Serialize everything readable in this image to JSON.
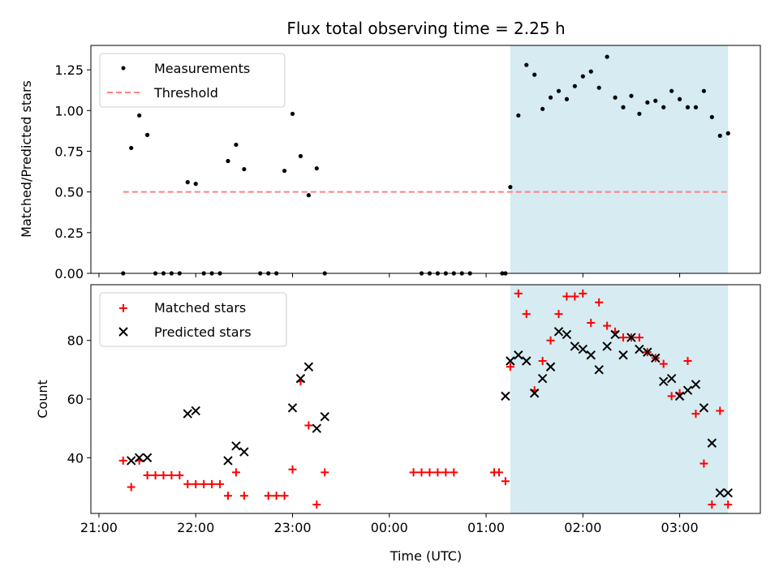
{
  "chart_data": [
    {
      "type": "scatter",
      "title": "Flux total observing time = 2.25 h",
      "xlabel": "",
      "ylabel": "Matched/Predicted stars",
      "xlim": [
        "20:55",
        "03:50"
      ],
      "ylim": [
        0,
        1.4
      ],
      "yticks": [
        "0.00",
        "0.25",
        "0.50",
        "0.75",
        "1.00",
        "1.25"
      ],
      "legend": {
        "placement": "upper-left",
        "entries": [
          "Measurements",
          "Threshold"
        ]
      },
      "highlight": {
        "from": "01:15",
        "to": "03:30",
        "color": "#add8e6"
      },
      "threshold": {
        "name": "Threshold",
        "value": 0.5,
        "from": "21:15",
        "to": "03:30",
        "color": "#ff8080"
      },
      "series": [
        {
          "name": "Measurements",
          "color": "#000000",
          "x": [
            "21:15",
            "21:20",
            "21:25",
            "21:30",
            "21:35",
            "21:40",
            "21:45",
            "21:50",
            "21:55",
            "22:00",
            "22:05",
            "22:10",
            "22:15",
            "22:20",
            "22:25",
            "22:30",
            "22:40",
            "22:45",
            "22:50",
            "22:55",
            "23:00",
            "23:05",
            "23:10",
            "23:15",
            "23:20",
            "00:20",
            "00:25",
            "00:30",
            "00:35",
            "00:40",
            "00:45",
            "00:50",
            "01:10",
            "01:12",
            "01:15",
            "01:20",
            "01:25",
            "01:30",
            "01:35",
            "01:40",
            "01:45",
            "01:50",
            "01:55",
            "02:00",
            "02:05",
            "02:10",
            "02:15",
            "02:20",
            "02:25",
            "02:30",
            "02:35",
            "02:40",
            "02:45",
            "02:50",
            "02:55",
            "03:00",
            "03:05",
            "03:10",
            "03:15",
            "03:20",
            "03:25",
            "03:30"
          ],
          "y": [
            0,
            0.77,
            0.97,
            0.85,
            0,
            0,
            0,
            0,
            0.56,
            0.55,
            0,
            0,
            0,
            0.69,
            0.79,
            0.64,
            0,
            0,
            0,
            0.63,
            0.98,
            0.72,
            0.48,
            0.645,
            0,
            0,
            0,
            0,
            0,
            0,
            0,
            0,
            0,
            0,
            0.53,
            0.97,
            1.28,
            1.22,
            1.01,
            1.08,
            1.12,
            1.07,
            1.15,
            1.21,
            1.24,
            1.14,
            1.33,
            1.08,
            1.02,
            1.09,
            0.98,
            1.05,
            1.06,
            1.02,
            1.12,
            1.07,
            1.02,
            1.02,
            1.12,
            0.96,
            0.845,
            0.86
          ]
        }
      ]
    },
    {
      "type": "scatter",
      "title": "",
      "xlabel": "Time (UTC)",
      "ylabel": "Count",
      "xlim": [
        "20:55",
        "03:50"
      ],
      "ylim": [
        21,
        99
      ],
      "yticks": [
        "40",
        "60",
        "80"
      ],
      "xticks": [
        "21:00",
        "22:00",
        "23:00",
        "00:00",
        "01:00",
        "02:00",
        "03:00"
      ],
      "legend": {
        "placement": "upper-left",
        "entries": [
          "Matched stars",
          "Predicted stars"
        ]
      },
      "highlight": {
        "from": "01:15",
        "to": "03:30",
        "color": "#add8e6"
      },
      "series": [
        {
          "name": "Matched stars",
          "marker": "plus",
          "color": "#ff0000",
          "x": [
            "21:15",
            "21:20",
            "21:25",
            "21:30",
            "21:35",
            "21:40",
            "21:45",
            "21:50",
            "21:55",
            "22:00",
            "22:05",
            "22:10",
            "22:15",
            "22:20",
            "22:25",
            "22:30",
            "22:45",
            "22:50",
            "22:55",
            "23:00",
            "23:05",
            "23:10",
            "23:15",
            "23:20",
            "00:15",
            "00:20",
            "00:25",
            "00:30",
            "00:35",
            "00:40",
            "01:05",
            "01:08",
            "01:12",
            "01:15",
            "01:20",
            "01:25",
            "01:30",
            "01:35",
            "01:40",
            "01:45",
            "01:50",
            "01:55",
            "02:00",
            "02:05",
            "02:10",
            "02:15",
            "02:20",
            "02:25",
            "02:30",
            "02:35",
            "02:40",
            "02:45",
            "02:50",
            "02:55",
            "03:00",
            "03:05",
            "03:10",
            "03:15",
            "03:20",
            "03:25",
            "03:30"
          ],
          "y": [
            39,
            30,
            39,
            34,
            34,
            34,
            34,
            34,
            31,
            31,
            31,
            31,
            31,
            27,
            35,
            27,
            27,
            27,
            27,
            36,
            66,
            51,
            24,
            35,
            35,
            35,
            35,
            35,
            35,
            35,
            35,
            35,
            32,
            71,
            96,
            89,
            63,
            73,
            80,
            89,
            95,
            95,
            96,
            86,
            93,
            85,
            83,
            81,
            81,
            81,
            76,
            74,
            72,
            61,
            62,
            73,
            55,
            38,
            24,
            56,
            24
          ]
        },
        {
          "name": "Predicted stars",
          "marker": "x",
          "color": "#000000",
          "x": [
            "21:20",
            "21:25",
            "21:30",
            "21:55",
            "22:00",
            "22:20",
            "22:25",
            "22:30",
            "23:00",
            "23:05",
            "23:10",
            "23:15",
            "23:20",
            "01:12",
            "01:15",
            "01:20",
            "01:25",
            "01:30",
            "01:35",
            "01:40",
            "01:45",
            "01:50",
            "01:55",
            "02:00",
            "02:05",
            "02:10",
            "02:15",
            "02:20",
            "02:25",
            "02:30",
            "02:35",
            "02:40",
            "02:45",
            "02:50",
            "02:55",
            "03:00",
            "03:05",
            "03:10",
            "03:15",
            "03:20",
            "03:25",
            "03:30"
          ],
          "y": [
            39,
            40,
            40,
            55,
            56,
            39,
            44,
            42,
            57,
            67,
            71,
            50,
            54,
            61,
            73,
            75,
            73,
            62,
            67,
            71,
            83,
            82,
            78,
            77,
            75,
            70,
            78,
            82,
            75,
            81,
            77,
            76,
            74,
            66,
            67,
            61,
            63,
            65,
            57,
            45,
            28,
            28
          ]
        }
      ]
    }
  ]
}
